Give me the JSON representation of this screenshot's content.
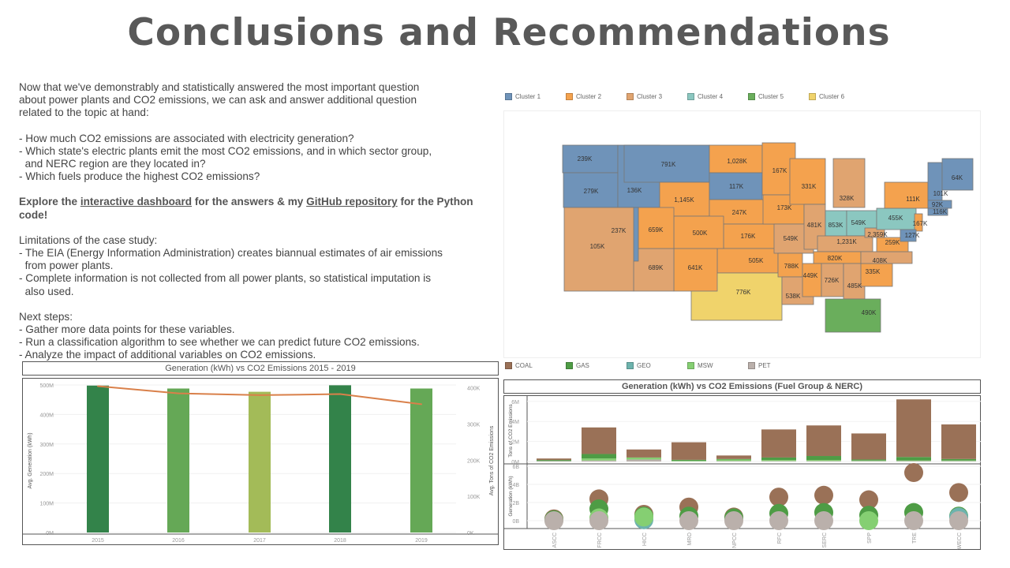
{
  "title": "Conclusions and Recommendations",
  "intro": [
    "Now that we've demonstrably and statistically answered the most important question",
    "about power plants and CO2 emissions, we can ask and answer additional question",
    "related to the topic at hand:"
  ],
  "questions": [
    "- How much CO2 emissions are associated with electricity generation?",
    "- Which state's electric plants emit the most CO2 emissions, and in which sector group,",
    "  and NERC region are they located in?",
    "- Which fuels produce the highest CO2 emissions?"
  ],
  "explore": {
    "pre": "Explore the ",
    "link1": "interactive dashboard",
    "mid": " for the answers & my ",
    "link2": "GitHub repository",
    "post": " for the Python code!"
  },
  "limitations": [
    "Limitations of the case study:",
    "- The EIA (Energy Information Administration) creates biannual estimates of air emissions",
    "  from power plants.",
    "- Complete information is not collected from all power plants, so statistical imputation is",
    "  also used."
  ],
  "next_steps": [
    "Next steps:",
    "- Gather more data points for these variables.",
    "- Run a classification algorithm to see whether we can predict future CO2 emissions.",
    "- Analyze the impact of additional variables on CO2 emissions."
  ],
  "map": {
    "clusters": [
      {
        "name": "Cluster 1",
        "color": "#6f93b9"
      },
      {
        "name": "Cluster 2",
        "color": "#f4a24e"
      },
      {
        "name": "Cluster 3",
        "color": "#e0a470"
      },
      {
        "name": "Cluster 4",
        "color": "#8bc7c0"
      },
      {
        "name": "Cluster 5",
        "color": "#6aae5c"
      },
      {
        "name": "Cluster 6",
        "color": "#f0d36b"
      }
    ],
    "states": [
      {
        "v": "239K",
        "c": 0
      },
      {
        "v": "279K",
        "c": 0
      },
      {
        "v": "136K",
        "c": 0
      },
      {
        "v": "791K",
        "c": 0
      },
      {
        "v": "1,145K",
        "c": 1
      },
      {
        "v": "1,028K",
        "c": 1
      },
      {
        "v": "117K",
        "c": 0
      },
      {
        "v": "247K",
        "c": 1
      },
      {
        "v": "176K",
        "c": 1
      },
      {
        "v": "505K",
        "c": 1
      },
      {
        "v": "776K",
        "c": 5
      },
      {
        "v": "641K",
        "c": 1
      },
      {
        "v": "689K",
        "c": 2
      },
      {
        "v": "500K",
        "c": 1
      },
      {
        "v": "659K",
        "c": 1
      },
      {
        "v": "237K",
        "c": 0
      },
      {
        "v": "105K",
        "c": 2
      },
      {
        "v": "167K",
        "c": 1
      },
      {
        "v": "173K",
        "c": 1
      },
      {
        "v": "549K",
        "c": 2
      },
      {
        "v": "788K",
        "c": 1
      },
      {
        "v": "538K",
        "c": 2
      },
      {
        "v": "331K",
        "c": 1
      },
      {
        "v": "481K",
        "c": 2
      },
      {
        "v": "328K",
        "c": 2
      },
      {
        "v": "853K",
        "c": 3
      },
      {
        "v": "549K",
        "c": 3
      },
      {
        "v": "1,231K",
        "c": 2
      },
      {
        "v": "820K",
        "c": 1
      },
      {
        "v": "449K",
        "c": 1
      },
      {
        "v": "726K",
        "c": 2
      },
      {
        "v": "485K",
        "c": 2
      },
      {
        "v": "490K",
        "c": 4
      },
      {
        "v": "335K",
        "c": 1
      },
      {
        "v": "408K",
        "c": 2
      },
      {
        "v": "259K",
        "c": 1
      },
      {
        "v": "2,359K",
        "c": 2
      },
      {
        "v": "455K",
        "c": 3
      },
      {
        "v": "111K",
        "c": 1
      },
      {
        "v": "167K",
        "c": 1
      },
      {
        "v": "127K",
        "c": 0
      },
      {
        "v": "101K",
        "c": 0
      },
      {
        "v": "64K",
        "c": 0
      },
      {
        "v": "92K",
        "c": 0
      },
      {
        "v": "116K",
        "c": 0
      }
    ]
  },
  "fuel_legend": [
    {
      "name": "COAL",
      "color": "#9a7157"
    },
    {
      "name": "GAS",
      "color": "#4e9c45"
    },
    {
      "name": "GEO",
      "color": "#6db3ad"
    },
    {
      "name": "MSW",
      "color": "#85cf72"
    },
    {
      "name": "PET",
      "color": "#bab0ab"
    }
  ],
  "chart_data": [
    {
      "type": "bar",
      "title": "Generation (kWh) vs CO2 Emissions 2015 - 2019",
      "categories": [
        "2015",
        "2016",
        "2017",
        "2018",
        "2019"
      ],
      "ylabel": "Avg. Generation (kWh)",
      "y2label": "Avg. Tons of CO2 Emissions",
      "yticks": [
        "0M",
        "100M",
        "200M",
        "300M",
        "400M",
        "500M"
      ],
      "y2ticks": [
        "0K",
        "100K",
        "200K",
        "300K",
        "400K"
      ],
      "ylim": [
        0,
        500
      ],
      "y2lim": [
        0,
        400
      ],
      "series": [
        {
          "name": "Avg. Generation (kWh, M)",
          "type": "bar",
          "values": [
            498,
            488,
            477,
            499,
            488
          ],
          "colors": [
            "#33834a",
            "#65a856",
            "#a3bb58",
            "#33834a",
            "#65a856"
          ]
        },
        {
          "name": "Avg. Tons of CO2 Emissions (K)",
          "type": "line",
          "values": [
            405,
            385,
            380,
            383,
            355
          ],
          "color": "#d9804a"
        }
      ]
    },
    {
      "type": "bar",
      "title": "Generation (kWh) vs CO2 Emissions (Fuel Group & NERC)",
      "categories": [
        "ASCC",
        "FRCC",
        "HICC",
        "MRO",
        "NPCC",
        "RFC",
        "SERC",
        "SPP",
        "TRE",
        "WECC"
      ],
      "ylabel": "Tons of CO2 Emissions",
      "yticks": [
        "0M",
        "2M",
        "4M",
        "6M"
      ],
      "ylim": [
        0,
        6.5
      ],
      "series": [
        {
          "name": "PET",
          "values": [
            0.05,
            0.1,
            0.2,
            0.02,
            0.05,
            0.05,
            0.05,
            0.05,
            0.05,
            0.05
          ]
        },
        {
          "name": "MSW",
          "values": [
            0,
            0.2,
            0.2,
            0.05,
            0.15,
            0.1,
            0.1,
            0.05,
            0.05,
            0.05
          ]
        },
        {
          "name": "GAS",
          "values": [
            0.1,
            0.45,
            0,
            0.1,
            0.05,
            0.25,
            0.4,
            0.1,
            0.35,
            0.15
          ]
        },
        {
          "name": "COAL",
          "values": [
            0.15,
            2.65,
            0.8,
            1.75,
            0.35,
            2.8,
            3.05,
            2.6,
            5.75,
            3.45
          ]
        }
      ]
    },
    {
      "type": "scatter",
      "ylabel": "Generation (kWh)",
      "yticks": [
        "0B",
        "2B",
        "4B",
        "6B"
      ],
      "ylim": [
        -1,
        6.2
      ],
      "categories": [
        "ASCC",
        "FRCC",
        "HICC",
        "MRO",
        "NPCC",
        "RFC",
        "SERC",
        "SPP",
        "TRE",
        "WECC"
      ],
      "series": [
        {
          "name": "COAL",
          "values": [
            0.2,
            2.4,
            0.7,
            1.5,
            0.4,
            2.6,
            2.8,
            2.3,
            5.3,
            3.1
          ]
        },
        {
          "name": "GAS",
          "values": [
            0.1,
            1.3,
            0.5,
            0.5,
            0.3,
            0.8,
            0.9,
            0.6,
            0.9,
            0.5
          ]
        },
        {
          "name": "GEO",
          "values": [
            null,
            null,
            0.1,
            null,
            null,
            null,
            null,
            null,
            null,
            0.4
          ]
        },
        {
          "name": "MSW",
          "values": [
            null,
            0.3,
            0.4,
            null,
            null,
            null,
            null,
            0,
            null,
            null
          ]
        },
        {
          "name": "PET",
          "values": [
            0,
            0,
            null,
            0,
            0,
            0,
            0,
            null,
            0,
            0
          ]
        }
      ]
    }
  ]
}
